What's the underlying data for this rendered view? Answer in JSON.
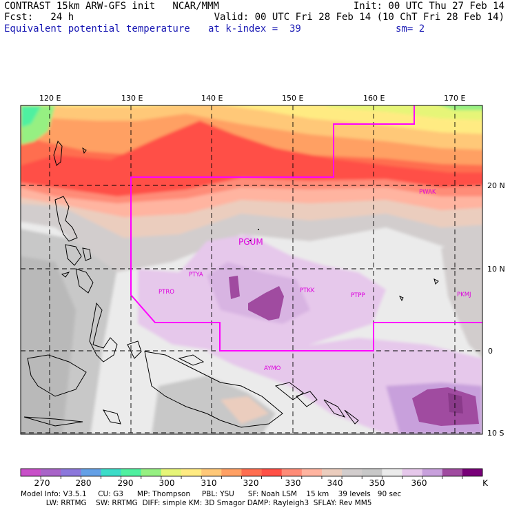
{
  "header": {
    "left1": "CONTRAST 15km ARW-GFS init   NCAR/MMM",
    "left2": "Fcst:   24 h",
    "left3": "Equivalent potential temperature",
    "right1": "Init: 00 UTC Thu 27 Feb 14",
    "right2": "Valid: 00 UTC Fri 28 Feb 14 (10 ChT Fri 28 Feb 14)",
    "mid3": "at k-index =  39",
    "right3": "sm= 2"
  },
  "map": {
    "lon_labels": [
      "120 E",
      "130 E",
      "140 E",
      "150 E",
      "160 E",
      "170 E"
    ],
    "lat_labels": [
      "20 N",
      "10 N",
      "0",
      "10 S"
    ],
    "stations": [
      {
        "id": "PGUM",
        "big": true
      },
      {
        "id": "PTYA"
      },
      {
        "id": "PTRO"
      },
      {
        "id": "PTKK"
      },
      {
        "id": "PTPP"
      },
      {
        "id": "PKMJ"
      },
      {
        "id": "PWAK"
      },
      {
        "id": "AYMO"
      }
    ],
    "boundary_color": "#ff00ff",
    "station_color": "#dd00dd"
  },
  "colorbar": {
    "colors": [
      "#c850c8",
      "#a864c8",
      "#8c78dc",
      "#64a0e6",
      "#3cdcc8",
      "#50f0a0",
      "#96f082",
      "#e6f578",
      "#ffeb82",
      "#ffc878",
      "#ffa064",
      "#ff6e50",
      "#ff5046",
      "#ff8c78",
      "#ffb4a0",
      "#ebcdbe",
      "#d2cdcd",
      "#c8c8c8",
      "#ebebeb",
      "#e6c8eb",
      "#c8a0dc",
      "#a04ba0",
      "#780078"
    ],
    "labels": [
      "270",
      "280",
      "290",
      "300",
      "310",
      "320",
      "330",
      "340",
      "350",
      "360"
    ],
    "unit": "K"
  },
  "model_info": {
    "line1": "Model Info: V3.5.1     CU: G3      MP: Thompson     PBL: YSU      SF: Noah LSM    15 km    39 levels   90 sec",
    "line2": "           LW: RRTMG    SW: RRTMG  DIFF: simple KM: 3D Smagor DAMP: Rayleigh3  SFLAY: Rev MM5"
  }
}
